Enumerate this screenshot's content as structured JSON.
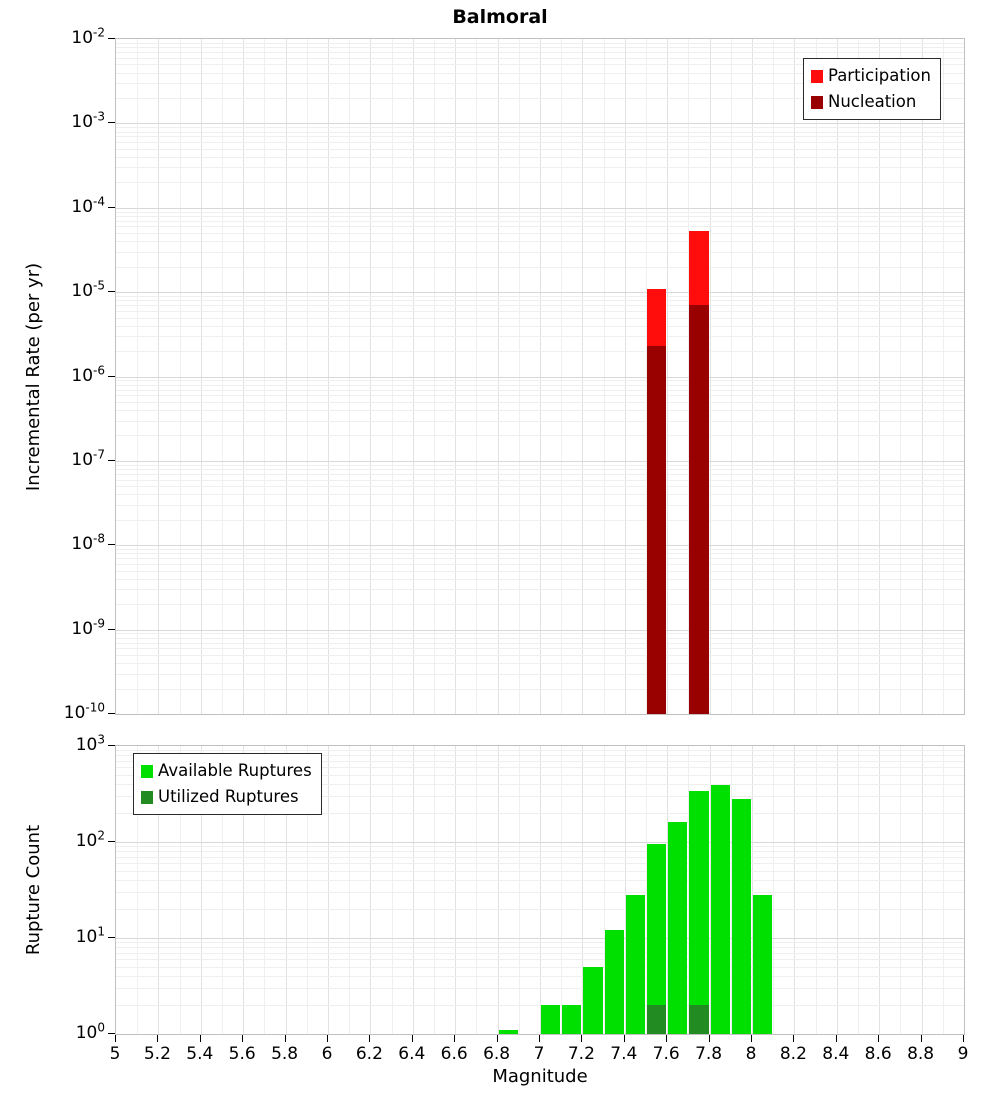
{
  "title": "Balmoral",
  "xaxis": {
    "label": "Magnitude",
    "min": 5,
    "max": 9,
    "ticks": [
      "5",
      "5.2",
      "5.4",
      "5.6",
      "5.8",
      "6",
      "6.2",
      "6.4",
      "6.6",
      "6.8",
      "7",
      "7.2",
      "7.4",
      "7.6",
      "7.8",
      "8",
      "8.2",
      "8.4",
      "8.6",
      "8.8",
      "9"
    ]
  },
  "chart_data": [
    {
      "type": "bar",
      "title": "Balmoral",
      "xlabel": "",
      "ylabel": "Incremental Rate (per yr)",
      "yscale": "log",
      "xlim": [
        5,
        9
      ],
      "ylim_exp": [
        -10,
        -2
      ],
      "yticks_exp": [
        -2,
        -3,
        -4,
        -5,
        -6,
        -7,
        -8,
        -9,
        -10
      ],
      "bin_width": 0.1,
      "grid": true,
      "legend_position": "top-right",
      "series": [
        {
          "name": "Participation",
          "color": "#ff0d0d",
          "x": [
            7.55,
            7.75
          ],
          "y": [
            1.1e-05,
            5.3e-05
          ]
        },
        {
          "name": "Nucleation",
          "color": "#990000",
          "x": [
            7.55,
            7.75
          ],
          "y": [
            2.3e-06,
            7e-06
          ]
        }
      ]
    },
    {
      "type": "bar",
      "title": "",
      "xlabel": "Magnitude",
      "ylabel": "Rupture Count",
      "yscale": "log",
      "xlim": [
        5,
        9
      ],
      "ylim_exp": [
        0,
        3
      ],
      "yticks_exp": [
        3,
        2,
        1,
        0
      ],
      "bin_width": 0.1,
      "grid": true,
      "legend_position": "top-left",
      "series": [
        {
          "name": "Available Ruptures",
          "color": "#00e000",
          "x": [
            6.85,
            7.05,
            7.15,
            7.25,
            7.35,
            7.45,
            7.55,
            7.65,
            7.75,
            7.85,
            7.95,
            8.05
          ],
          "y": [
            1.1,
            2,
            2,
            5,
            12,
            28,
            95,
            160,
            340,
            390,
            280,
            28
          ]
        },
        {
          "name": "Utilized Ruptures",
          "color": "#228b22",
          "x": [
            7.55,
            7.75
          ],
          "y": [
            2,
            2
          ]
        }
      ]
    }
  ]
}
